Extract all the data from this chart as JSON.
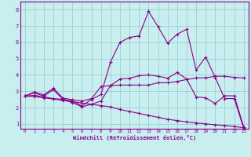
{
  "xlabel": "Windchill (Refroidissement éolien,°C)",
  "bg_color": "#c8eef0",
  "grid_color": "#9ecece",
  "line_color": "#880088",
  "xlim": [
    -0.5,
    23.5
  ],
  "ylim": [
    0.7,
    8.5
  ],
  "xticks": [
    0,
    1,
    2,
    3,
    4,
    5,
    6,
    7,
    8,
    9,
    10,
    11,
    12,
    13,
    14,
    15,
    16,
    17,
    18,
    19,
    20,
    21,
    22,
    23
  ],
  "yticks": [
    1,
    2,
    3,
    4,
    5,
    6,
    7,
    8
  ],
  "line1_x": [
    0,
    1,
    2,
    3,
    4,
    5,
    6,
    7,
    8,
    9,
    10,
    11,
    12,
    13,
    14,
    15,
    16,
    17,
    18,
    19,
    20,
    21,
    22,
    23
  ],
  "line1_y": [
    2.7,
    2.9,
    2.7,
    3.1,
    2.5,
    2.4,
    2.1,
    2.5,
    2.8,
    4.8,
    6.0,
    6.3,
    6.4,
    7.9,
    6.95,
    5.95,
    6.5,
    6.8,
    4.3,
    5.1,
    3.85,
    2.55,
    2.55,
    0.72
  ],
  "line2_x": [
    0,
    1,
    2,
    3,
    4,
    5,
    6,
    7,
    8,
    9,
    10,
    11,
    12,
    13,
    14,
    15,
    16,
    17,
    18,
    19,
    20,
    21,
    22,
    23
  ],
  "line2_y": [
    2.7,
    2.75,
    2.65,
    2.55,
    2.5,
    2.3,
    2.05,
    2.2,
    2.4,
    3.35,
    3.75,
    3.8,
    3.95,
    4.0,
    3.92,
    3.8,
    4.15,
    3.75,
    2.65,
    2.6,
    2.25,
    2.72,
    2.72,
    0.82
  ],
  "line3_x": [
    0,
    1,
    2,
    3,
    4,
    5,
    6,
    7,
    8,
    9,
    10,
    11,
    12,
    13,
    14,
    15,
    16,
    17,
    18,
    19,
    20,
    21,
    22,
    23
  ],
  "line3_y": [
    2.7,
    2.95,
    2.78,
    3.18,
    2.58,
    2.48,
    2.4,
    2.55,
    3.28,
    3.35,
    3.38,
    3.38,
    3.38,
    3.38,
    3.52,
    3.52,
    3.6,
    3.72,
    3.82,
    3.82,
    3.92,
    3.92,
    3.85,
    3.82
  ],
  "line4_x": [
    0,
    1,
    2,
    3,
    4,
    5,
    6,
    7,
    8,
    9,
    10,
    11,
    12,
    13,
    14,
    15,
    16,
    17,
    18,
    19,
    20,
    21,
    22,
    23
  ],
  "line4_y": [
    2.7,
    2.68,
    2.6,
    2.52,
    2.44,
    2.36,
    2.28,
    2.2,
    2.12,
    2.04,
    1.88,
    1.76,
    1.64,
    1.52,
    1.4,
    1.28,
    1.2,
    1.12,
    1.06,
    1.0,
    0.94,
    0.9,
    0.84,
    0.76
  ]
}
